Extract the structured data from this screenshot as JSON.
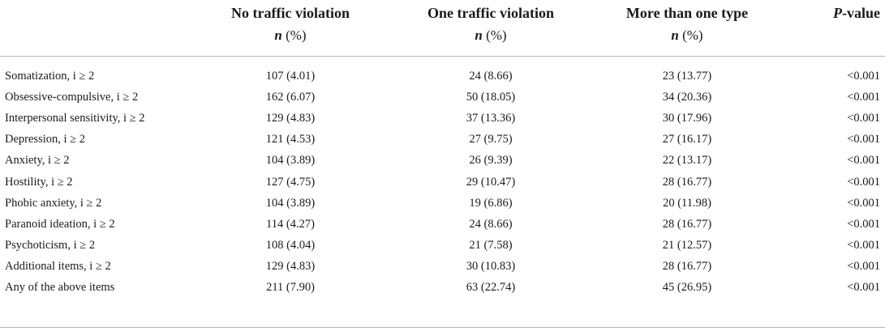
{
  "headers": {
    "col1": "No traffic violation",
    "col2": "One traffic violation",
    "col3": "More than one type",
    "col4_italic": "P",
    "col4_rest": "-value",
    "sub_n": "n",
    "sub_pct": "(%)"
  },
  "rows": [
    {
      "label": "Somatization, i ≥ 2",
      "c1": "107 (4.01)",
      "c2": "24 (8.66)",
      "c3": "23 (13.77)",
      "p": "<0.001"
    },
    {
      "label": "Obsessive-compulsive, i ≥ 2",
      "c1": "162 (6.07)",
      "c2": "50 (18.05)",
      "c3": "34 (20.36)",
      "p": "<0.001"
    },
    {
      "label": "Interpersonal sensitivity, i ≥ 2",
      "c1": "129 (4.83)",
      "c2": "37 (13.36)",
      "c3": "30 (17.96)",
      "p": "<0.001"
    },
    {
      "label": "Depression, i ≥ 2",
      "c1": "121 (4.53)",
      "c2": "27 (9.75)",
      "c3": "27 (16.17)",
      "p": "<0.001"
    },
    {
      "label": "Anxiety, i ≥ 2",
      "c1": "104 (3.89)",
      "c2": "26 (9.39)",
      "c3": "22 (13.17)",
      "p": "<0.001"
    },
    {
      "label": "Hostility, i ≥ 2",
      "c1": "127 (4.75)",
      "c2": "29 (10.47)",
      "c3": "28 (16.77)",
      "p": "<0.001"
    },
    {
      "label": "Phobic anxiety, i ≥ 2",
      "c1": "104 (3.89)",
      "c2": "19 (6.86)",
      "c3": "20 (11.98)",
      "p": "<0.001"
    },
    {
      "label": "Paranoid ideation, i ≥ 2",
      "c1": "114 (4.27)",
      "c2": "24 (8.66)",
      "c3": "28 (16.77)",
      "p": "<0.001"
    },
    {
      "label": "Psychoticism, i ≥ 2",
      "c1": "108 (4.04)",
      "c2": "21 (7.58)",
      "c3": "21 (12.57)",
      "p": "<0.001"
    },
    {
      "label": "Additional items, i ≥ 2",
      "c1": "129 (4.83)",
      "c2": "30 (10.83)",
      "c3": "28 (16.77)",
      "p": "<0.001"
    },
    {
      "label": "Any of the above items",
      "c1": "211 (7.90)",
      "c2": "63 (22.74)",
      "c3": "45 (26.95)",
      "p": "<0.001"
    }
  ]
}
